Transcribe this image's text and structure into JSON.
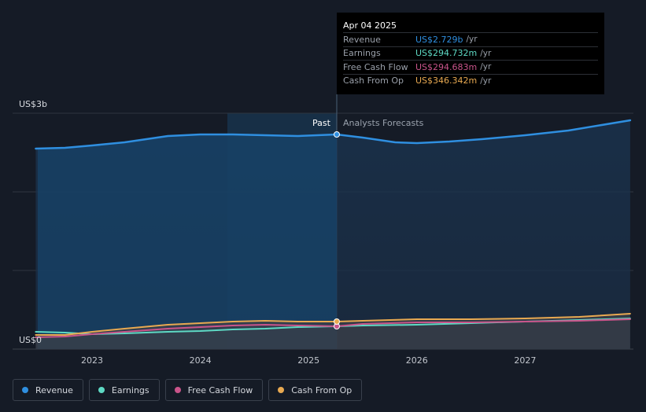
{
  "chart_data": {
    "type": "area",
    "y_axis_labels": [
      "US$3b",
      "US$0"
    ],
    "ylim": [
      0,
      3
    ],
    "x_ticks": [
      "2023",
      "2024",
      "2025",
      "2026",
      "2027"
    ],
    "divider_labels": {
      "past": "Past",
      "forecast": "Analysts Forecasts"
    },
    "divider_x": 2025.26,
    "series": [
      {
        "name": "Revenue",
        "color": "#2f8fe0",
        "x": [
          2022.48,
          2022.75,
          2023.0,
          2023.3,
          2023.7,
          2024.0,
          2024.3,
          2024.6,
          2024.9,
          2025.26,
          2025.5,
          2025.8,
          2026.0,
          2026.3,
          2026.6,
          2027.0,
          2027.4,
          2027.97
        ],
        "values": [
          2.55,
          2.56,
          2.59,
          2.63,
          2.71,
          2.73,
          2.73,
          2.72,
          2.71,
          2.73,
          2.69,
          2.63,
          2.62,
          2.64,
          2.67,
          2.72,
          2.78,
          2.91
        ]
      },
      {
        "name": "Earnings",
        "color": "#5ed9c4",
        "x": [
          2022.48,
          2022.75,
          2023.0,
          2023.3,
          2023.7,
          2024.0,
          2024.3,
          2024.6,
          2024.9,
          2025.26,
          2025.5,
          2026.0,
          2026.5,
          2027.0,
          2027.5,
          2027.97
        ],
        "values": [
          0.22,
          0.21,
          0.19,
          0.2,
          0.22,
          0.23,
          0.25,
          0.26,
          0.28,
          0.29,
          0.3,
          0.31,
          0.33,
          0.35,
          0.37,
          0.39
        ]
      },
      {
        "name": "Free Cash Flow",
        "color": "#c9548a",
        "x": [
          2022.48,
          2022.75,
          2023.0,
          2023.3,
          2023.7,
          2024.0,
          2024.3,
          2024.6,
          2024.9,
          2025.26,
          2025.5,
          2026.0,
          2026.5,
          2027.0,
          2027.5,
          2027.97
        ],
        "values": [
          0.15,
          0.16,
          0.19,
          0.22,
          0.26,
          0.28,
          0.3,
          0.31,
          0.3,
          0.29,
          0.32,
          0.34,
          0.34,
          0.35,
          0.36,
          0.38
        ]
      },
      {
        "name": "Cash From Op",
        "color": "#e8a951",
        "x": [
          2022.48,
          2022.75,
          2023.0,
          2023.3,
          2023.7,
          2024.0,
          2024.3,
          2024.6,
          2024.9,
          2025.26,
          2025.5,
          2026.0,
          2026.5,
          2027.0,
          2027.5,
          2027.97
        ],
        "values": [
          0.18,
          0.18,
          0.22,
          0.26,
          0.31,
          0.33,
          0.35,
          0.36,
          0.35,
          0.35,
          0.36,
          0.38,
          0.38,
          0.39,
          0.41,
          0.45
        ]
      }
    ],
    "grid": true
  },
  "tooltip": {
    "date": "Apr 04 2025",
    "rows": [
      {
        "label": "Revenue",
        "value": "US$2.729b",
        "unit": "/yr",
        "color": "#2f8fe0"
      },
      {
        "label": "Earnings",
        "value": "US$294.732m",
        "unit": "/yr",
        "color": "#5ed9c4"
      },
      {
        "label": "Free Cash Flow",
        "value": "US$294.683m",
        "unit": "/yr",
        "color": "#c9548a"
      },
      {
        "label": "Cash From Op",
        "value": "US$346.342m",
        "unit": "/yr",
        "color": "#e8a951"
      }
    ]
  },
  "legend": [
    {
      "label": "Revenue",
      "color": "#2f8fe0"
    },
    {
      "label": "Earnings",
      "color": "#5ed9c4"
    },
    {
      "label": "Free Cash Flow",
      "color": "#c9548a"
    },
    {
      "label": "Cash From Op",
      "color": "#e8a951"
    }
  ]
}
